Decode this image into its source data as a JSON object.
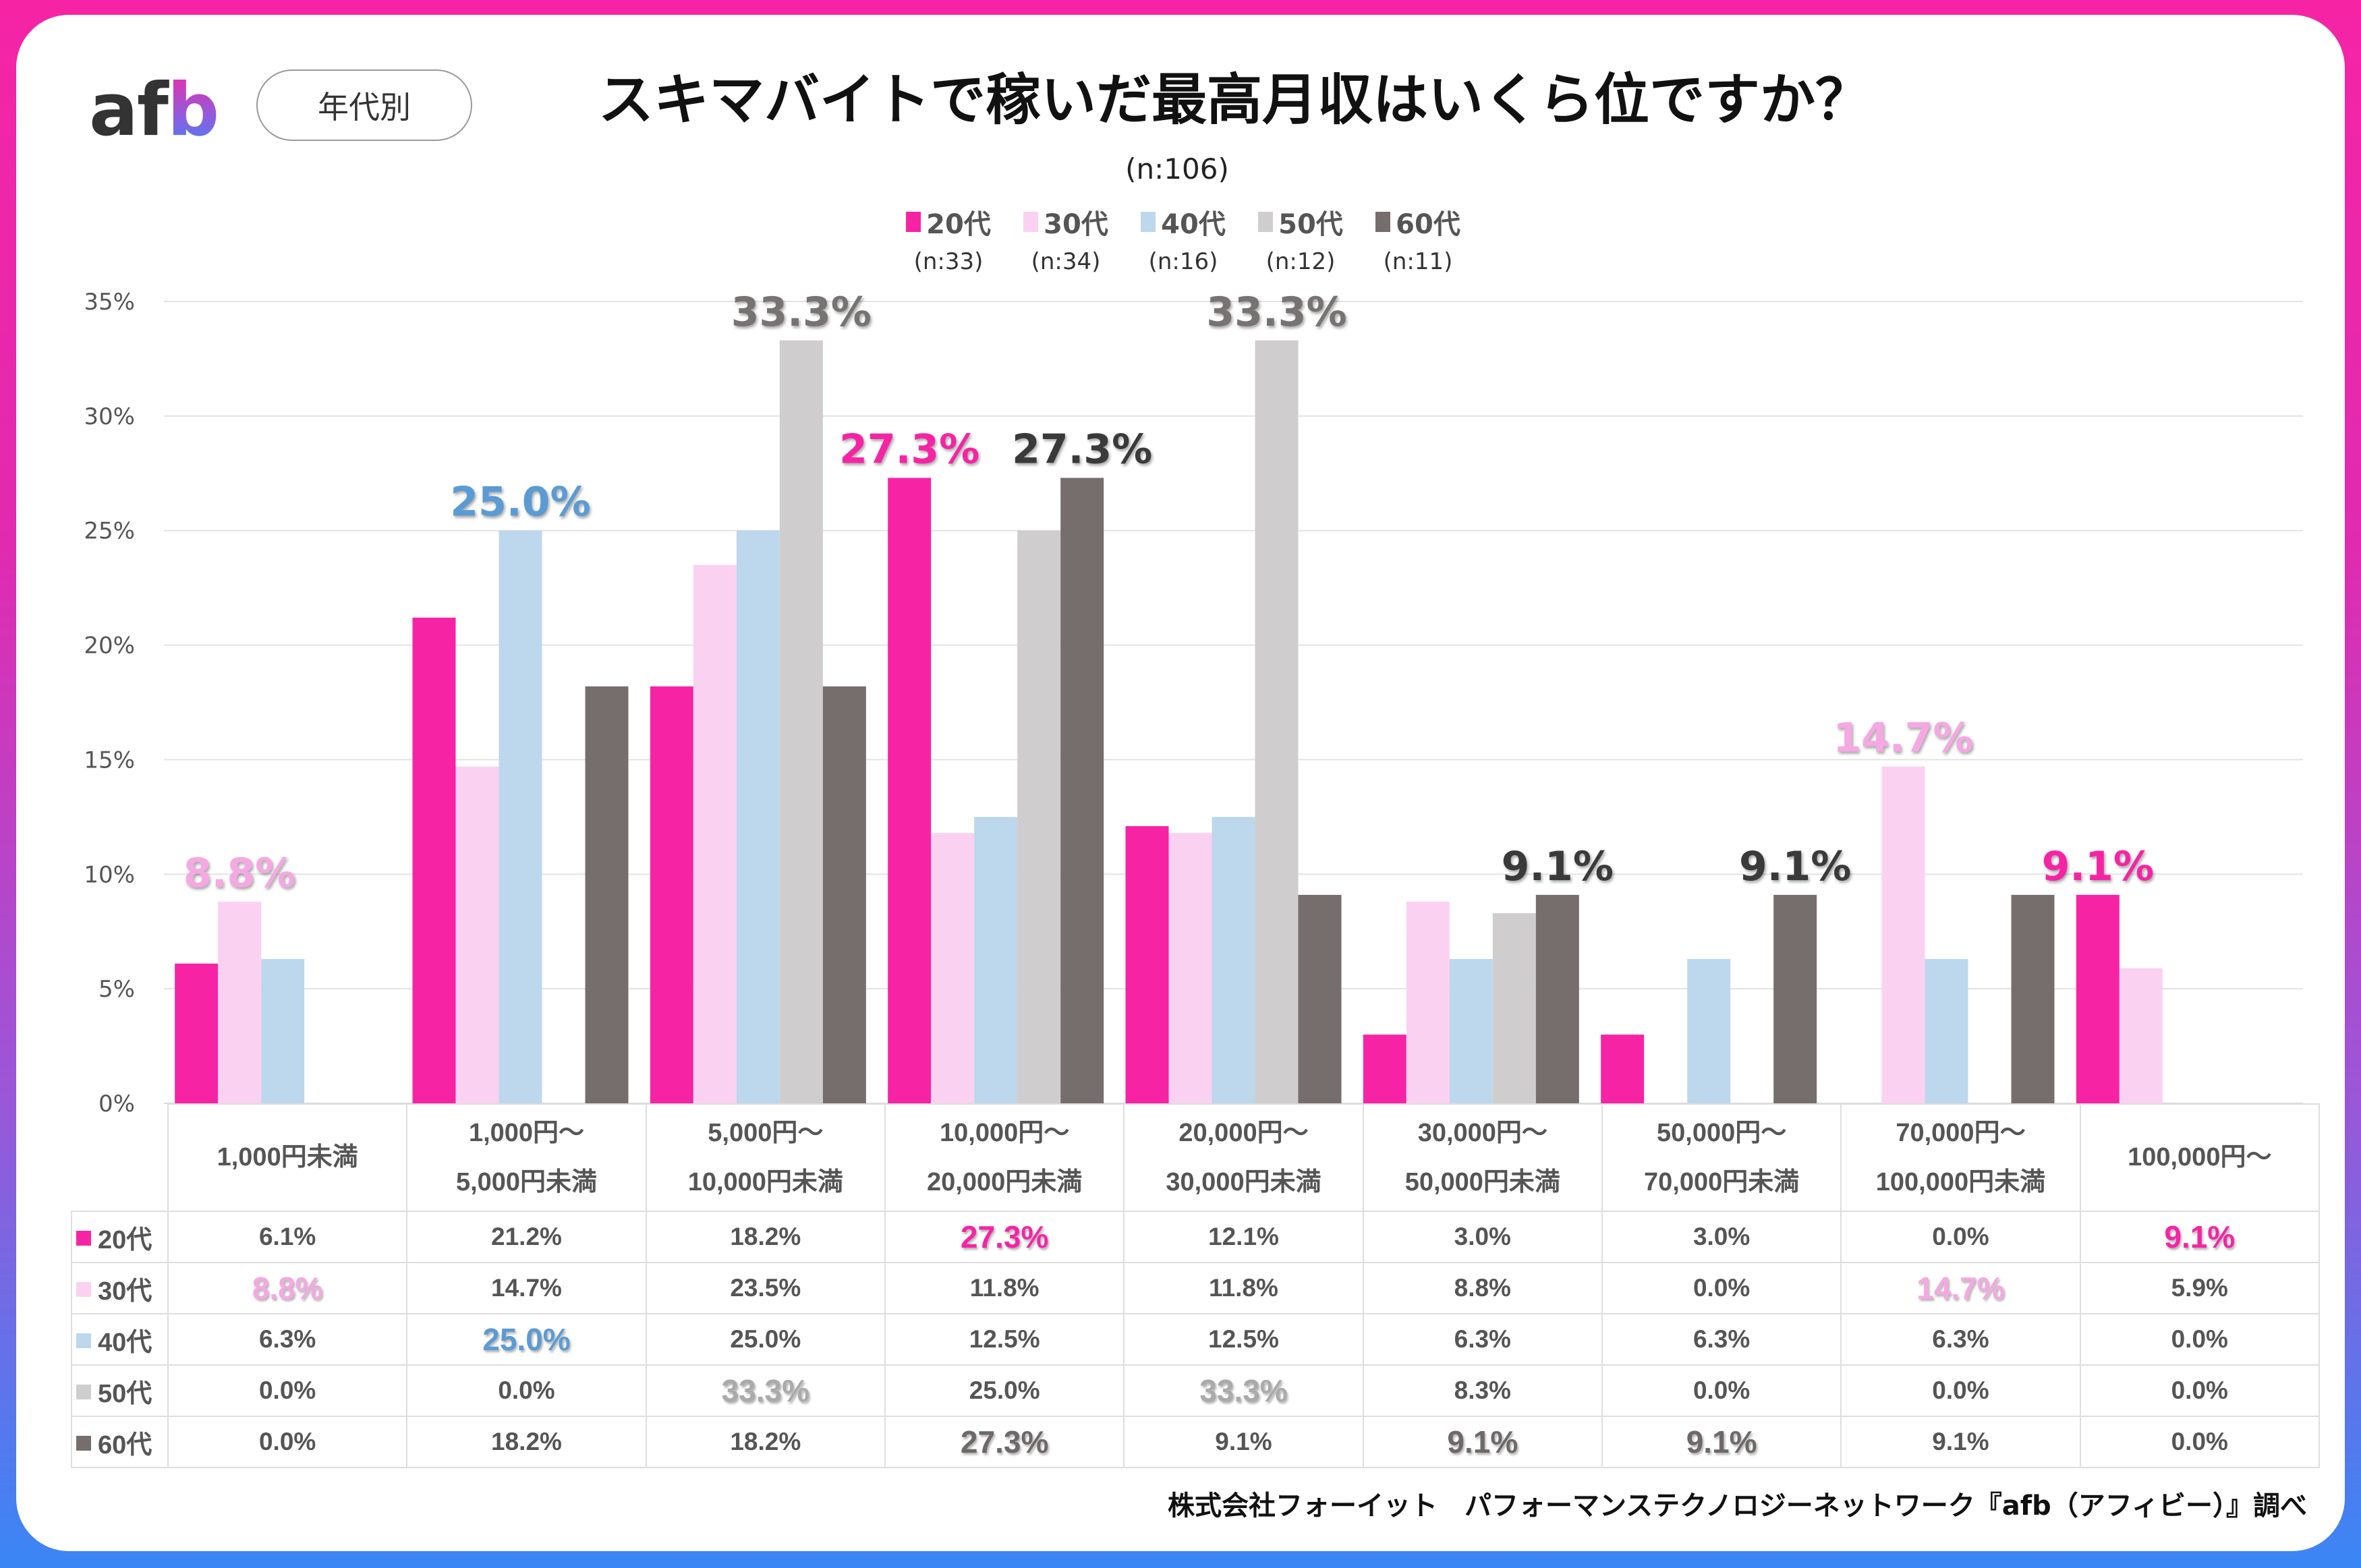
{
  "header": {
    "logo_text_af": "af",
    "logo_text_b": "b",
    "segment_pill": "年代別",
    "title": "スキマバイトで稼いだ最高月収はいくら位ですか？",
    "sample_total": "(n:106)"
  },
  "footer": {
    "source": "株式会社フォーイット　パフォーマンステクノロジーネットワーク『afb（アフィビー）』調べ"
  },
  "colors": {
    "20代": "#f624a5",
    "30代": "#fbd1f2",
    "40代": "#bdd7ec",
    "50代": "#d0cdce",
    "60代": "#766e6d"
  },
  "chart_data": {
    "type": "bar",
    "title": "スキマバイトで稼いだ最高月収はいくら位ですか？",
    "subtitle": "(n:106)",
    "xlabel": "",
    "ylabel": "",
    "ylim": [
      0,
      35
    ],
    "yticks": [
      "0%",
      "5%",
      "10%",
      "15%",
      "20%",
      "25%",
      "30%",
      "35%"
    ],
    "grid": true,
    "legend_position": "top-center",
    "categories": [
      "1,000円未満",
      "1,000円～5,000円未満",
      "5,000円～10,000円未満",
      "10,000円～20,000円未満",
      "20,000円～30,000円未満",
      "30,000円～50,000円未満",
      "50,000円～70,000円未満",
      "70,000円～100,000円未満",
      "100,000円～"
    ],
    "category_lines": [
      [
        "1,000円未満"
      ],
      [
        "1,000円～",
        "5,000円未満"
      ],
      [
        "5,000円～",
        "10,000円未満"
      ],
      [
        "10,000円～",
        "20,000円未満"
      ],
      [
        "20,000円～",
        "30,000円未満"
      ],
      [
        "30,000円～",
        "50,000円未満"
      ],
      [
        "50,000円～",
        "70,000円未満"
      ],
      [
        "70,000円～",
        "100,000円未満"
      ],
      [
        "100,000円～"
      ]
    ],
    "series": [
      {
        "name": "20代",
        "n": "(n:33)",
        "color": "#f624a5",
        "label_color": "#f624a5",
        "values": [
          6.1,
          21.2,
          18.2,
          27.3,
          12.1,
          3.0,
          3.0,
          0.0,
          9.1
        ],
        "highlight": [
          3,
          8
        ]
      },
      {
        "name": "30代",
        "n": "(n:34)",
        "color": "#fbd1f2",
        "label_color": "#f5a8e2",
        "values": [
          8.8,
          14.7,
          23.5,
          11.8,
          11.8,
          8.8,
          0.0,
          14.7,
          5.9
        ],
        "highlight": [
          0,
          7
        ]
      },
      {
        "name": "40代",
        "n": "(n:16)",
        "color": "#bdd7ec",
        "label_color": "#5b9bd5",
        "values": [
          6.3,
          25.0,
          25.0,
          12.5,
          12.5,
          6.3,
          6.3,
          6.3,
          0.0
        ],
        "highlight": [
          1
        ]
      },
      {
        "name": "50代",
        "n": "(n:12)",
        "color": "#d0cdce",
        "label_color": "#787373",
        "table_label_color": "#aaaaaa",
        "values": [
          0.0,
          0.0,
          33.3,
          25.0,
          33.3,
          8.3,
          0.0,
          0.0,
          0.0
        ],
        "highlight": [
          2,
          4
        ]
      },
      {
        "name": "60代",
        "n": "(n:11)",
        "color": "#766e6d",
        "label_color": "#3a3a3a",
        "table_label_color": "#6e6868",
        "values": [
          0.0,
          18.2,
          18.2,
          27.3,
          9.1,
          9.1,
          9.1,
          9.1,
          0.0
        ],
        "highlight": [
          3,
          5,
          6
        ]
      }
    ],
    "data_labels": [
      {
        "series": 1,
        "category": 0,
        "text": "8.8%"
      },
      {
        "series": 2,
        "category": 1,
        "text": "25.0%"
      },
      {
        "series": 3,
        "category": 2,
        "text": "33.3%"
      },
      {
        "series": 0,
        "category": 3,
        "text": "27.3%"
      },
      {
        "series": 4,
        "category": 3,
        "text": "27.3%"
      },
      {
        "series": 3,
        "category": 4,
        "text": "33.3%"
      },
      {
        "series": 4,
        "category": 5,
        "text": "9.1%"
      },
      {
        "series": 4,
        "category": 6,
        "text": "9.1%"
      },
      {
        "series": 1,
        "category": 7,
        "text": "14.7%"
      },
      {
        "series": 0,
        "category": 8,
        "text": "9.1%"
      }
    ]
  }
}
